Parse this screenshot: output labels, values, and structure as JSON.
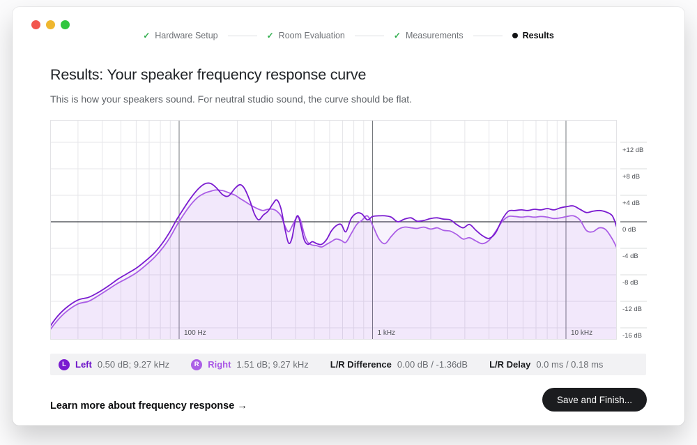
{
  "window": {
    "traffic_lights": {
      "close_color": "#f2564e",
      "minimize_color": "#efb72f",
      "zoom_color": "#31c63f"
    }
  },
  "stepper": {
    "check_glyph": "✓",
    "check_color": "#2fad4c",
    "steps": [
      {
        "label": "Hardware Setup",
        "state": "done"
      },
      {
        "label": "Room Evaluation",
        "state": "done"
      },
      {
        "label": "Measurements",
        "state": "done"
      },
      {
        "label": "Results",
        "state": "current"
      }
    ]
  },
  "header": {
    "title": "Results: Your speaker frequency response curve",
    "subtitle": "This is how your speakers sound. For neutral studio sound, the curve should be flat."
  },
  "chart_data": {
    "type": "line",
    "x_scale": "log",
    "x_unit": "Hz",
    "y_unit": "dB",
    "x_range": [
      21.4,
      18300
    ],
    "y_range": [
      -17.8,
      15.4
    ],
    "grid": true,
    "x_ticks": [
      {
        "value": 100,
        "label": "100 Hz"
      },
      {
        "value": 1000,
        "label": "1 kHz"
      },
      {
        "value": 10000,
        "label": "10 kHz"
      }
    ],
    "y_ticks": [
      {
        "value": 12,
        "label": "+12 dB"
      },
      {
        "value": 8,
        "label": "+8 dB"
      },
      {
        "value": 4,
        "label": "+4 dB"
      },
      {
        "value": 0,
        "label": "0 dB"
      },
      {
        "value": -4,
        "label": "-4 dB"
      },
      {
        "value": -8,
        "label": "-8 dB"
      },
      {
        "value": -12,
        "label": "-12 dB"
      },
      {
        "value": -16,
        "label": "-16 dB"
      }
    ],
    "series": [
      {
        "name": "Right",
        "color": "#ab5fe6",
        "fill_opacity": 0.07,
        "points": [
          [
            20,
            -17.6
          ],
          [
            23,
            -15.2
          ],
          [
            26,
            -13.6
          ],
          [
            30,
            -12.4
          ],
          [
            34,
            -12.0
          ],
          [
            38,
            -11.2
          ],
          [
            43,
            -10.2
          ],
          [
            48,
            -9.3
          ],
          [
            54,
            -8.5
          ],
          [
            60,
            -7.7
          ],
          [
            67,
            -6.6
          ],
          [
            75,
            -5.3
          ],
          [
            83,
            -3.8
          ],
          [
            90,
            -2.3
          ],
          [
            97,
            -0.6
          ],
          [
            105,
            1.0
          ],
          [
            115,
            2.6
          ],
          [
            125,
            3.7
          ],
          [
            135,
            4.3
          ],
          [
            145,
            4.6
          ],
          [
            155,
            4.8
          ],
          [
            168,
            4.7
          ],
          [
            180,
            4.4
          ],
          [
            195,
            4.0
          ],
          [
            207,
            3.5
          ],
          [
            218,
            3.1
          ],
          [
            232,
            2.6
          ],
          [
            245,
            2.2
          ],
          [
            258,
            1.9
          ],
          [
            272,
            1.7
          ],
          [
            288,
            1.9
          ],
          [
            305,
            1.9
          ],
          [
            320,
            1.6
          ],
          [
            336,
            0.9
          ],
          [
            352,
            -0.6
          ],
          [
            368,
            -1.5
          ],
          [
            383,
            -0.7
          ],
          [
            398,
            0.3
          ],
          [
            412,
            0.8
          ],
          [
            426,
            0.1
          ],
          [
            443,
            -1.8
          ],
          [
            463,
            -3.1
          ],
          [
            488,
            -3.5
          ],
          [
            515,
            -3.6
          ],
          [
            545,
            -3.8
          ],
          [
            578,
            -3.4
          ],
          [
            612,
            -3.0
          ],
          [
            648,
            -2.6
          ],
          [
            688,
            -2.8
          ],
          [
            728,
            -3.1
          ],
          [
            775,
            -1.8
          ],
          [
            828,
            -0.4
          ],
          [
            880,
            0.2
          ],
          [
            940,
            0.9
          ],
          [
            1000,
            -0.5
          ],
          [
            1080,
            -2.6
          ],
          [
            1160,
            -3.3
          ],
          [
            1250,
            -2.2
          ],
          [
            1350,
            -1.2
          ],
          [
            1460,
            -0.8
          ],
          [
            1580,
            -0.9
          ],
          [
            1700,
            -1.0
          ],
          [
            1840,
            -0.8
          ],
          [
            2000,
            -1.1
          ],
          [
            2160,
            -0.9
          ],
          [
            2330,
            -1.3
          ],
          [
            2520,
            -1.4
          ],
          [
            2720,
            -1.9
          ],
          [
            2940,
            -2.6
          ],
          [
            3170,
            -2.4
          ],
          [
            3430,
            -2.9
          ],
          [
            3700,
            -3.3
          ],
          [
            4000,
            -2.8
          ],
          [
            4320,
            -1.5
          ],
          [
            4670,
            0.0
          ],
          [
            5040,
            0.8
          ],
          [
            5450,
            0.8
          ],
          [
            5890,
            0.7
          ],
          [
            6360,
            0.8
          ],
          [
            6870,
            0.7
          ],
          [
            7420,
            0.8
          ],
          [
            8020,
            0.7
          ],
          [
            8660,
            0.5
          ],
          [
            9360,
            0.6
          ],
          [
            10110,
            0.8
          ],
          [
            10920,
            0.9
          ],
          [
            11800,
            0.3
          ],
          [
            12750,
            -1.3
          ],
          [
            13770,
            -1.5
          ],
          [
            14880,
            -0.9
          ],
          [
            16070,
            -1.2
          ],
          [
            17360,
            -2.6
          ],
          [
            18300,
            -3.9
          ]
        ]
      },
      {
        "name": "Left",
        "color": "#7a1bd0",
        "fill_opacity": 0.05,
        "points": [
          [
            20,
            -17.2
          ],
          [
            23,
            -14.6
          ],
          [
            26,
            -13.0
          ],
          [
            30,
            -11.8
          ],
          [
            34,
            -11.4
          ],
          [
            38,
            -10.7
          ],
          [
            43,
            -9.7
          ],
          [
            48,
            -8.7
          ],
          [
            54,
            -7.8
          ],
          [
            60,
            -7.0
          ],
          [
            67,
            -5.9
          ],
          [
            75,
            -4.6
          ],
          [
            83,
            -3.0
          ],
          [
            90,
            -1.4
          ],
          [
            97,
            0.3
          ],
          [
            105,
            1.9
          ],
          [
            115,
            3.6
          ],
          [
            125,
            4.9
          ],
          [
            135,
            5.7
          ],
          [
            145,
            5.8
          ],
          [
            155,
            5.2
          ],
          [
            168,
            4.1
          ],
          [
            180,
            3.9
          ],
          [
            195,
            5.1
          ],
          [
            207,
            5.6
          ],
          [
            218,
            5.0
          ],
          [
            232,
            3.2
          ],
          [
            245,
            1.2
          ],
          [
            258,
            0.3
          ],
          [
            272,
            1.0
          ],
          [
            288,
            1.6
          ],
          [
            305,
            2.7
          ],
          [
            320,
            3.3
          ],
          [
            336,
            2.0
          ],
          [
            352,
            -1.0
          ],
          [
            368,
            -3.2
          ],
          [
            383,
            -2.5
          ],
          [
            398,
            0.1
          ],
          [
            412,
            0.9
          ],
          [
            426,
            -0.6
          ],
          [
            443,
            -2.7
          ],
          [
            463,
            -3.4
          ],
          [
            488,
            -3.0
          ],
          [
            515,
            -3.3
          ],
          [
            545,
            -3.4
          ],
          [
            578,
            -2.7
          ],
          [
            612,
            -1.4
          ],
          [
            648,
            -0.6
          ],
          [
            688,
            -0.4
          ],
          [
            728,
            -1.5
          ],
          [
            775,
            0.5
          ],
          [
            828,
            1.3
          ],
          [
            880,
            1.2
          ],
          [
            940,
            0.3
          ],
          [
            1000,
            0.8
          ],
          [
            1080,
            0.9
          ],
          [
            1160,
            0.9
          ],
          [
            1250,
            0.7
          ],
          [
            1350,
            0.0
          ],
          [
            1460,
            0.4
          ],
          [
            1580,
            0.6
          ],
          [
            1700,
            0.1
          ],
          [
            1840,
            0.2
          ],
          [
            2000,
            0.5
          ],
          [
            2160,
            0.6
          ],
          [
            2330,
            0.4
          ],
          [
            2520,
            0.3
          ],
          [
            2720,
            -0.4
          ],
          [
            2940,
            -0.9
          ],
          [
            3170,
            -0.4
          ],
          [
            3430,
            -1.3
          ],
          [
            3700,
            -2.1
          ],
          [
            4000,
            -2.5
          ],
          [
            4320,
            -1.7
          ],
          [
            4670,
            0.3
          ],
          [
            5040,
            1.6
          ],
          [
            5450,
            1.7
          ],
          [
            5890,
            1.8
          ],
          [
            6360,
            1.7
          ],
          [
            6870,
            1.9
          ],
          [
            7420,
            1.8
          ],
          [
            8020,
            2.0
          ],
          [
            8660,
            1.8
          ],
          [
            9360,
            2.1
          ],
          [
            10110,
            2.3
          ],
          [
            10920,
            2.4
          ],
          [
            11800,
            1.9
          ],
          [
            12750,
            1.4
          ],
          [
            13770,
            1.6
          ],
          [
            14880,
            1.7
          ],
          [
            16070,
            1.5
          ],
          [
            17360,
            0.9
          ],
          [
            18300,
            -0.8
          ]
        ]
      }
    ]
  },
  "summary": {
    "left": {
      "badge": "L",
      "label": "Left",
      "value": "0.50 dB; 9.27 kHz",
      "color": "#7a1bd0",
      "text_color": "#6d13c9"
    },
    "right": {
      "badge": "R",
      "label": "Right",
      "value": "1.51 dB; 9.27 kHz",
      "color": "#ab5fe6",
      "text_color": "#a958e6"
    },
    "difference": {
      "label": "L/R Difference",
      "value": "0.00 dB / -1.36dB"
    },
    "delay": {
      "label": "L/R Delay",
      "value": "0.0 ms / 0.18 ms"
    }
  },
  "footer": {
    "link_label": "Learn more about frequency response",
    "link_arrow": "→",
    "button_label": "Save and Finish..."
  }
}
